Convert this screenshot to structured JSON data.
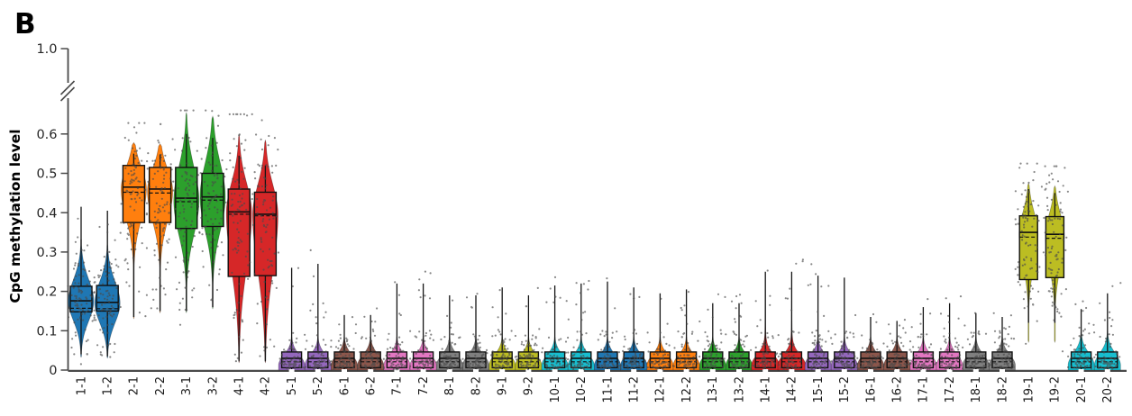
{
  "chart_data": {
    "type": "violin-box-strip",
    "panel_label": "B",
    "ylabel": "CpG methylation level",
    "y_axis": {
      "ticks": [
        {
          "label": "0",
          "v": 0
        },
        {
          "label": "0.1",
          "v": 0.1
        },
        {
          "label": "0.2",
          "v": 0.2
        },
        {
          "label": "0.3",
          "v": 0.3
        },
        {
          "label": "0.4",
          "v": 0.4
        },
        {
          "label": "0.5",
          "v": 0.5
        },
        {
          "label": "0.6",
          "v": 0.6
        }
      ],
      "top_tick_label": "1.0",
      "axis_break": true,
      "ylim_linear": [
        0,
        0.68
      ]
    },
    "x_tick_rotation": 90,
    "style": {
      "background": "#ffffff",
      "axis_color": "#4a4a4a",
      "box_edge_color": "#111111",
      "dot_color": "#4a4a4a"
    },
    "small_defaults": {
      "wl": 0.0,
      "q1": 0.006,
      "med": 0.03,
      "mean": 0.021,
      "q3": 0.046,
      "vlo": 0.0,
      "vhi": 0.085,
      "mode": 0.018
    },
    "series": [
      {
        "label": "1-1",
        "color": "#1f77b4",
        "kind": "tall",
        "wl": 0.04,
        "q1": 0.148,
        "med": 0.176,
        "mean": 0.157,
        "q3": 0.213,
        "wh": 0.415,
        "vlo": 0.032,
        "vhi": 0.335,
        "mode": 0.175,
        "sdlo": 0.05,
        "sdhi": 0.055
      },
      {
        "label": "1-2",
        "color": "#1f77b4",
        "kind": "tall",
        "wl": 0.035,
        "q1": 0.15,
        "med": 0.172,
        "mean": 0.156,
        "q3": 0.215,
        "wh": 0.405,
        "vlo": 0.03,
        "vhi": 0.32,
        "mode": 0.17,
        "sdlo": 0.05,
        "sdhi": 0.055
      },
      {
        "label": "2-1",
        "color": "#ff7f0e",
        "kind": "tall",
        "wl": 0.135,
        "q1": 0.375,
        "med": 0.465,
        "mean": 0.452,
        "q3": 0.52,
        "wh": 0.55,
        "vlo": 0.13,
        "vhi": 0.578,
        "mode": 0.46,
        "sdlo": 0.075,
        "sdhi": 0.055
      },
      {
        "label": "2-2",
        "color": "#ff7f0e",
        "kind": "tall",
        "wl": 0.15,
        "q1": 0.375,
        "med": 0.46,
        "mean": 0.45,
        "q3": 0.515,
        "wh": 0.548,
        "vlo": 0.145,
        "vhi": 0.575,
        "mode": 0.455,
        "sdlo": 0.075,
        "sdhi": 0.055
      },
      {
        "label": "3-1",
        "color": "#2ca02c",
        "kind": "tall",
        "wl": 0.15,
        "q1": 0.36,
        "med": 0.437,
        "mean": 0.428,
        "q3": 0.515,
        "wh": 0.6,
        "vlo": 0.145,
        "vhi": 0.655,
        "mode": 0.43,
        "sdlo": 0.085,
        "sdhi": 0.085
      },
      {
        "label": "3-2",
        "color": "#2ca02c",
        "kind": "tall",
        "wl": 0.16,
        "q1": 0.365,
        "med": 0.44,
        "mean": 0.432,
        "q3": 0.5,
        "wh": 0.59,
        "vlo": 0.155,
        "vhi": 0.645,
        "mode": 0.44,
        "sdlo": 0.085,
        "sdhi": 0.085
      },
      {
        "label": "4-1",
        "color": "#d62728",
        "kind": "tall",
        "wl": 0.022,
        "q1": 0.238,
        "med": 0.402,
        "mean": 0.396,
        "q3": 0.46,
        "wh": 0.545,
        "vlo": 0.018,
        "vhi": 0.6,
        "mode": 0.4,
        "sdlo": 0.14,
        "sdhi": 0.075
      },
      {
        "label": "4-2",
        "color": "#d62728",
        "kind": "tall",
        "wl": 0.022,
        "q1": 0.24,
        "med": 0.396,
        "mean": 0.392,
        "q3": 0.452,
        "wh": 0.52,
        "vlo": 0.018,
        "vhi": 0.585,
        "mode": 0.395,
        "sdlo": 0.14,
        "sdhi": 0.075
      },
      {
        "label": "5-1",
        "color": "#9467bd",
        "kind": "small",
        "wh": 0.26
      },
      {
        "label": "5-2",
        "color": "#9467bd",
        "kind": "small",
        "wh": 0.27
      },
      {
        "label": "6-1",
        "color": "#8c564b",
        "kind": "small",
        "wh": 0.14
      },
      {
        "label": "6-2",
        "color": "#8c564b",
        "kind": "small",
        "wh": 0.14
      },
      {
        "label": "7-1",
        "color": "#e377c2",
        "kind": "small",
        "wh": 0.22
      },
      {
        "label": "7-2",
        "color": "#e377c2",
        "kind": "small",
        "wh": 0.22
      },
      {
        "label": "8-1",
        "color": "#7f7f7f",
        "kind": "small",
        "wh": 0.19
      },
      {
        "label": "8-2",
        "color": "#7f7f7f",
        "kind": "small",
        "wh": 0.19
      },
      {
        "label": "9-1",
        "color": "#bcbd22",
        "kind": "small",
        "wh": 0.21
      },
      {
        "label": "9-2",
        "color": "#bcbd22",
        "kind": "small",
        "wh": 0.19
      },
      {
        "label": "10-1",
        "color": "#17becf",
        "kind": "small",
        "wh": 0.215
      },
      {
        "label": "10-2",
        "color": "#17becf",
        "kind": "small",
        "wh": 0.22
      },
      {
        "label": "11-1",
        "color": "#1f77b4",
        "kind": "small",
        "wh": 0.225
      },
      {
        "label": "11-2",
        "color": "#1f77b4",
        "kind": "small",
        "wh": 0.21
      },
      {
        "label": "12-1",
        "color": "#ff7f0e",
        "kind": "small",
        "wh": 0.195
      },
      {
        "label": "12-2",
        "color": "#ff7f0e",
        "kind": "small",
        "wh": 0.205
      },
      {
        "label": "13-1",
        "color": "#2ca02c",
        "kind": "small",
        "wh": 0.17
      },
      {
        "label": "13-2",
        "color": "#2ca02c",
        "kind": "small",
        "wh": 0.17
      },
      {
        "label": "14-1",
        "color": "#d62728",
        "kind": "small",
        "wh": 0.25,
        "spike": true
      },
      {
        "label": "14-2",
        "color": "#d62728",
        "kind": "small",
        "wh": 0.25,
        "spike": true
      },
      {
        "label": "15-1",
        "color": "#9467bd",
        "kind": "small",
        "wh": 0.24
      },
      {
        "label": "15-2",
        "color": "#9467bd",
        "kind": "small",
        "wh": 0.235
      },
      {
        "label": "16-1",
        "color": "#8c564b",
        "kind": "small",
        "wh": 0.135
      },
      {
        "label": "16-2",
        "color": "#8c564b",
        "kind": "small",
        "wh": 0.125
      },
      {
        "label": "17-1",
        "color": "#e377c2",
        "kind": "small",
        "wh": 0.16
      },
      {
        "label": "17-2",
        "color": "#e377c2",
        "kind": "small",
        "wh": 0.17
      },
      {
        "label": "18-1",
        "color": "#7f7f7f",
        "kind": "small",
        "wh": 0.145
      },
      {
        "label": "18-2",
        "color": "#7f7f7f",
        "kind": "small",
        "wh": 0.135
      },
      {
        "label": "19-1",
        "color": "#bcbd22",
        "kind": "tall",
        "narrow": true,
        "wl": 0.12,
        "q1": 0.23,
        "med": 0.35,
        "mean": 0.338,
        "q3": 0.392,
        "wh": 0.46,
        "vlo": 0.07,
        "vhi": 0.475,
        "mode": 0.345,
        "sdlo": 0.075,
        "sdhi": 0.055
      },
      {
        "label": "19-2",
        "color": "#bcbd22",
        "kind": "tall",
        "narrow": true,
        "wl": 0.12,
        "q1": 0.235,
        "med": 0.345,
        "mean": 0.335,
        "q3": 0.39,
        "wh": 0.45,
        "vlo": 0.07,
        "vhi": 0.468,
        "mode": 0.34,
        "sdlo": 0.075,
        "sdhi": 0.055
      },
      {
        "label": "20-1",
        "color": "#17becf",
        "kind": "small",
        "wh": 0.155,
        "vhi": 0.1
      },
      {
        "label": "20-2",
        "color": "#17becf",
        "kind": "small",
        "wh": 0.195,
        "vhi": 0.1
      }
    ]
  }
}
